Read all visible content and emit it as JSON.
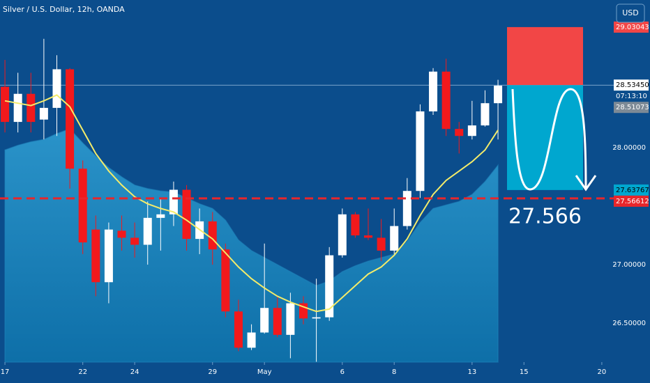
{
  "chart_data": {
    "type": "candlestick",
    "title": "Silver / U.S. Dollar, 12h, OANDA",
    "currency": "USD",
    "xlim": [
      -0.38,
      46.65
    ],
    "xticks": [
      {
        "value": 0,
        "label": "17"
      },
      {
        "value": 6,
        "label": "22"
      },
      {
        "value": 10,
        "label": "24"
      },
      {
        "value": 16,
        "label": "29"
      },
      {
        "value": 20,
        "label": "May"
      },
      {
        "value": 26,
        "label": "6"
      },
      {
        "value": 30,
        "label": "8"
      },
      {
        "value": 36,
        "label": "13"
      },
      {
        "value": 40,
        "label": "15"
      },
      {
        "value": 46,
        "label": "20"
      }
    ],
    "ylim": [
      26.167,
      29.262
    ],
    "yticks": [
      {
        "value": 26.5,
        "label": "26.50000"
      },
      {
        "value": 27,
        "label": "27.00000"
      },
      {
        "value": 28,
        "label": "28.00000"
      }
    ],
    "up_color": "#ffffff",
    "down_color": "#f2191c",
    "open": [
      28.52,
      28.22,
      28.46,
      28.24,
      28.34,
      28.67,
      27.82,
      27.3,
      26.85,
      27.29,
      27.23,
      27.17,
      27.4,
      27.43,
      27.64,
      27.22,
      27.37,
      27.13,
      26.6,
      26.29,
      26.42,
      26.63,
      26.4,
      26.67,
      26.54,
      26.55,
      27.08,
      27.43,
      27.25,
      27.23,
      27.12,
      27.33,
      27.63,
      28.31,
      28.65,
      28.16,
      28.1,
      28.19,
      28.38
    ],
    "high": [
      28.75,
      28.64,
      28.64,
      28.93,
      28.79,
      28.68,
      27.89,
      27.42,
      27.36,
      27.42,
      27.36,
      27.54,
      27.57,
      27.71,
      27.68,
      27.48,
      27.45,
      27.18,
      26.7,
      26.49,
      27.18,
      26.73,
      26.76,
      26.73,
      26.88,
      27.15,
      27.48,
      27.45,
      27.48,
      27.39,
      27.48,
      27.74,
      28.37,
      28.68,
      28.76,
      28.22,
      28.4,
      28.49,
      28.58
    ],
    "low": [
      28.13,
      28.13,
      28.13,
      28.07,
      28.1,
      27.65,
      27.09,
      26.73,
      26.67,
      27.12,
      27.06,
      27.0,
      27.12,
      27.33,
      27.12,
      27.09,
      27.0,
      26.55,
      26.26,
      26.27,
      26.41,
      26.38,
      26.2,
      26.49,
      26.17,
      26.52,
      27.06,
      27.23,
      27.21,
      27.03,
      27.09,
      27.3,
      27.57,
      28.28,
      28.1,
      27.95,
      28.07,
      28.18,
      28.07
    ],
    "close": [
      28.22,
      28.46,
      28.22,
      28.34,
      28.67,
      27.82,
      27.19,
      26.85,
      27.3,
      27.23,
      27.17,
      27.4,
      27.43,
      27.64,
      27.22,
      27.37,
      27.13,
      26.6,
      26.29,
      26.42,
      26.63,
      26.4,
      26.67,
      26.54,
      26.55,
      27.08,
      27.43,
      27.25,
      27.23,
      27.12,
      27.33,
      27.63,
      28.31,
      28.65,
      28.16,
      28.1,
      28.19,
      28.38,
      28.53
    ],
    "line": {
      "color": "#f4ec6a",
      "values": [
        28.4,
        28.38,
        28.36,
        28.4,
        28.45,
        28.35,
        28.15,
        27.95,
        27.8,
        27.68,
        27.58,
        27.52,
        27.48,
        27.45,
        27.38,
        27.3,
        27.22,
        27.1,
        26.98,
        26.88,
        26.8,
        26.73,
        26.68,
        26.64,
        26.6,
        26.62,
        26.72,
        26.82,
        26.92,
        26.98,
        27.08,
        27.22,
        27.42,
        27.6,
        27.72,
        27.8,
        27.88,
        27.98,
        28.15
      ]
    },
    "band": {
      "color": "#1f86bd",
      "values": [
        27.98,
        28.02,
        28.05,
        28.07,
        28.12,
        28.16,
        28.04,
        27.93,
        27.83,
        27.75,
        27.68,
        27.65,
        27.63,
        27.62,
        27.57,
        27.52,
        27.48,
        27.38,
        27.21,
        27.12,
        27.06,
        27.0,
        26.94,
        26.88,
        26.82,
        26.86,
        26.94,
        26.99,
        27.03,
        27.06,
        27.09,
        27.2,
        27.36,
        27.48,
        27.51,
        27.54,
        27.6,
        27.71,
        27.85
      ]
    },
    "position": {
      "stop": {
        "value": 29.03043,
        "label": "29.03043"
      },
      "entry": {
        "value": 28.5345,
        "label": "28.53450"
      },
      "target": {
        "value": 27.63767,
        "label": "27.63767"
      },
      "stop_color": "#f24646",
      "target_color": "#00a7cf"
    },
    "countdown": "07:13:10",
    "marker": {
      "value": 28.51073,
      "label": "28.51073"
    },
    "level": {
      "value": 27.56612,
      "label": "27.56612",
      "color": "#e8262b"
    },
    "annotation": "27.566"
  }
}
